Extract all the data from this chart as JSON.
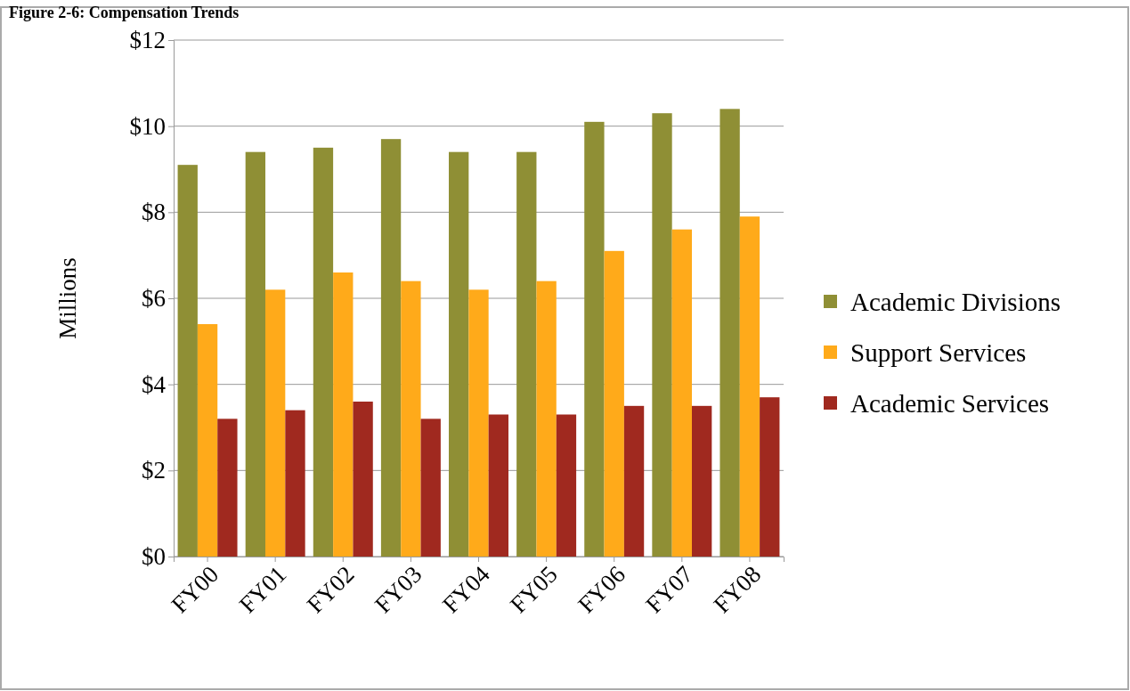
{
  "chart_data": {
    "type": "bar",
    "title": "Figure 2-6: Compensation Trends",
    "ylabel": "Millions",
    "categories": [
      "FY00",
      "FY01",
      "FY02",
      "FY03",
      "FY04",
      "FY05",
      "FY06",
      "FY07",
      "FY08"
    ],
    "series": [
      {
        "name": "Academic Divisions",
        "color": "#8f8f35",
        "values": [
          9.1,
          9.4,
          9.5,
          9.7,
          9.4,
          9.4,
          10.1,
          10.3,
          10.4
        ]
      },
      {
        "name": "Support Services",
        "color": "#ffaa1a",
        "values": [
          5.4,
          6.2,
          6.6,
          6.4,
          6.2,
          6.4,
          7.1,
          7.6,
          7.9
        ]
      },
      {
        "name": "Academic Services",
        "color": "#a0291f",
        "values": [
          3.2,
          3.4,
          3.6,
          3.2,
          3.3,
          3.3,
          3.5,
          3.5,
          3.7
        ]
      }
    ],
    "ylim": [
      0,
      12
    ],
    "yticks": [
      {
        "value": 0,
        "label": "$0"
      },
      {
        "value": 2,
        "label": "$2"
      },
      {
        "value": 4,
        "label": "$4"
      },
      {
        "value": 6,
        "label": "$6"
      },
      {
        "value": 8,
        "label": "$8"
      },
      {
        "value": 10,
        "label": "$10"
      },
      {
        "value": 12,
        "label": "$12"
      }
    ],
    "grid": "y",
    "legend": "right"
  }
}
